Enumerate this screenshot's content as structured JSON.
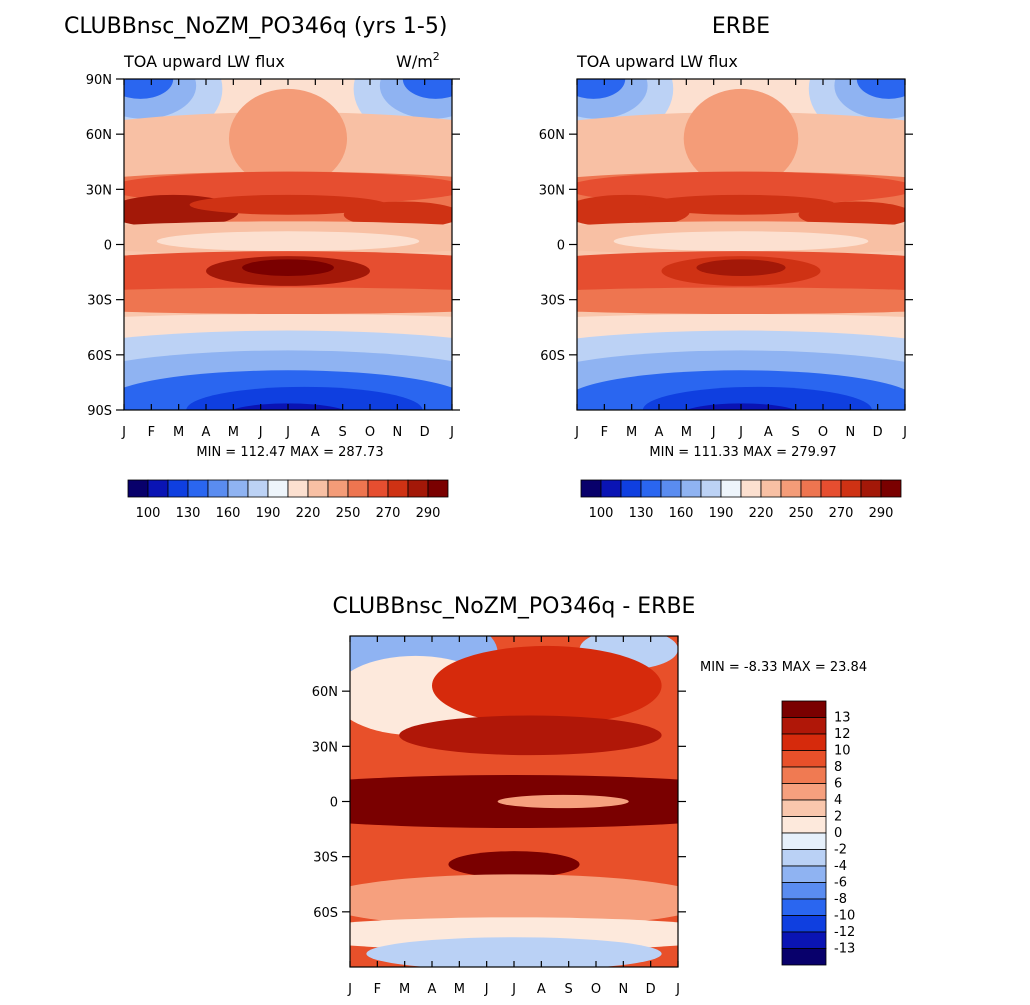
{
  "chart_data": [
    {
      "type": "contour",
      "panel": "model",
      "title": "CLUBBnsc_NoZM_PO346q (yrs 1-5)",
      "subtitle_left": "TOA upward LW flux",
      "units_base": "W/m",
      "units_exp": "2",
      "months": [
        "J",
        "F",
        "M",
        "A",
        "M",
        "J",
        "J",
        "A",
        "S",
        "O",
        "N",
        "D",
        "J"
      ],
      "lat_labels": [
        "90N",
        "60N",
        "30N",
        "0",
        "30S",
        "60S",
        "90S"
      ],
      "lat_values": [
        90,
        60,
        30,
        0,
        -30,
        -60,
        -90
      ],
      "min_max_text": "MIN = 112.47 MAX = 287.73",
      "min": 112.47,
      "max": 287.73,
      "colorbar_labels": [
        "100",
        "130",
        "160",
        "190",
        "220",
        "250",
        "270",
        "290"
      ]
    },
    {
      "type": "contour",
      "panel": "obs",
      "title": "ERBE",
      "subtitle_left": "TOA upward LW flux",
      "months": [
        "J",
        "F",
        "M",
        "A",
        "M",
        "J",
        "J",
        "A",
        "S",
        "O",
        "N",
        "D",
        "J"
      ],
      "lat_labels": [
        "60N",
        "30N",
        "0",
        "30S",
        "60S"
      ],
      "lat_values": [
        60,
        30,
        0,
        -30,
        -60
      ],
      "min_max_text": "MIN = 111.33 MAX = 279.97",
      "min": 111.33,
      "max": 279.97,
      "colorbar_labels": [
        "100",
        "130",
        "160",
        "190",
        "220",
        "250",
        "270",
        "290"
      ]
    },
    {
      "type": "contour",
      "panel": "difference",
      "title": "CLUBBnsc_NoZM_PO346q - ERBE",
      "months": [
        "J",
        "F",
        "M",
        "A",
        "M",
        "J",
        "J",
        "A",
        "S",
        "O",
        "N",
        "D",
        "J"
      ],
      "lat_labels": [
        "60N",
        "30N",
        "0",
        "30S",
        "60S"
      ],
      "lat_values": [
        60,
        30,
        0,
        -30,
        -60
      ],
      "min_max_text": "MIN =   -8.33 MAX =  23.84",
      "min": -8.33,
      "max": 23.84,
      "colorbar_labels": [
        "13",
        "12",
        "10",
        "8",
        "6",
        "4",
        "2",
        "0",
        "-2",
        "-4",
        "-6",
        "-8",
        "-10",
        "-12",
        "-13"
      ]
    }
  ],
  "colors": {
    "abs_scale": [
      "#08006b",
      "#0a14b4",
      "#0f3fe0",
      "#2a66f0",
      "#5a8cf0",
      "#8fb3f2",
      "#bcd2f5",
      "#eef5fb",
      "#fce0d0",
      "#f8c0a4",
      "#f49c78",
      "#ee7550",
      "#e64e30",
      "#cf3214",
      "#a31808",
      "#7a0000"
    ],
    "diff_scale": [
      "#7a0000",
      "#b01708",
      "#d62a0c",
      "#e8502a",
      "#f07a52",
      "#f6a07e",
      "#f9c7ad",
      "#fde9dc",
      "#e6f0fb",
      "#bad1f5",
      "#8fb3f2",
      "#5a8cf0",
      "#2a66f0",
      "#0f3fe0",
      "#0a14b4",
      "#08006b"
    ]
  }
}
